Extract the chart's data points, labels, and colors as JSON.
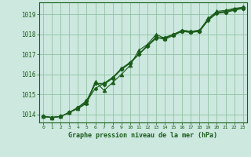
{
  "background_color": "#cce8df",
  "grid_color": "#88bb99",
  "line_color": "#1a5c1a",
  "title": "Graphe pression niveau de la mer (hPa)",
  "ylim": [
    1013.6,
    1019.6
  ],
  "xlim": [
    -0.5,
    23.5
  ],
  "yticks": [
    1014,
    1015,
    1016,
    1017,
    1018,
    1019
  ],
  "xticks": [
    0,
    1,
    2,
    3,
    4,
    5,
    6,
    7,
    8,
    9,
    10,
    11,
    12,
    13,
    14,
    15,
    16,
    17,
    18,
    19,
    20,
    21,
    22,
    23
  ],
  "series": [
    [
      1013.9,
      1013.85,
      1013.9,
      1014.1,
      1014.3,
      1014.6,
      1015.65,
      1015.2,
      1015.6,
      1016.0,
      1016.45,
      1017.2,
      1017.5,
      1018.0,
      1017.8,
      1018.0,
      1018.2,
      1018.15,
      1018.2,
      1018.8,
      1019.15,
      1019.2,
      1019.3,
      1019.35
    ],
    [
      1013.9,
      1013.85,
      1013.9,
      1014.1,
      1014.3,
      1014.55,
      1015.55,
      1015.55,
      1015.85,
      1016.25,
      1016.6,
      1017.0,
      1017.45,
      1017.85,
      1017.8,
      1018.0,
      1018.15,
      1018.1,
      1018.15,
      1018.75,
      1019.1,
      1019.1,
      1019.25,
      1019.3
    ],
    [
      1013.9,
      1013.85,
      1013.9,
      1014.1,
      1014.35,
      1014.65,
      1015.3,
      1015.55,
      1015.85,
      1016.3,
      1016.6,
      1017.0,
      1017.4,
      1017.8,
      1017.85,
      1018.0,
      1018.2,
      1018.15,
      1018.2,
      1018.75,
      1019.1,
      1019.15,
      1019.25,
      1019.35
    ],
    [
      1013.9,
      1013.85,
      1013.9,
      1014.1,
      1014.35,
      1014.7,
      1015.55,
      1015.5,
      1015.8,
      1016.25,
      1016.55,
      1017.0,
      1017.45,
      1017.85,
      1017.75,
      1017.95,
      1018.15,
      1018.1,
      1018.15,
      1018.7,
      1019.05,
      1019.1,
      1019.2,
      1019.3
    ]
  ],
  "marker_styles": [
    "^",
    "D",
    "D",
    "D"
  ],
  "marker_sizes": [
    3.5,
    2.5,
    2.5,
    2.5
  ],
  "linewidths": [
    0.8,
    0.8,
    0.8,
    0.8
  ]
}
